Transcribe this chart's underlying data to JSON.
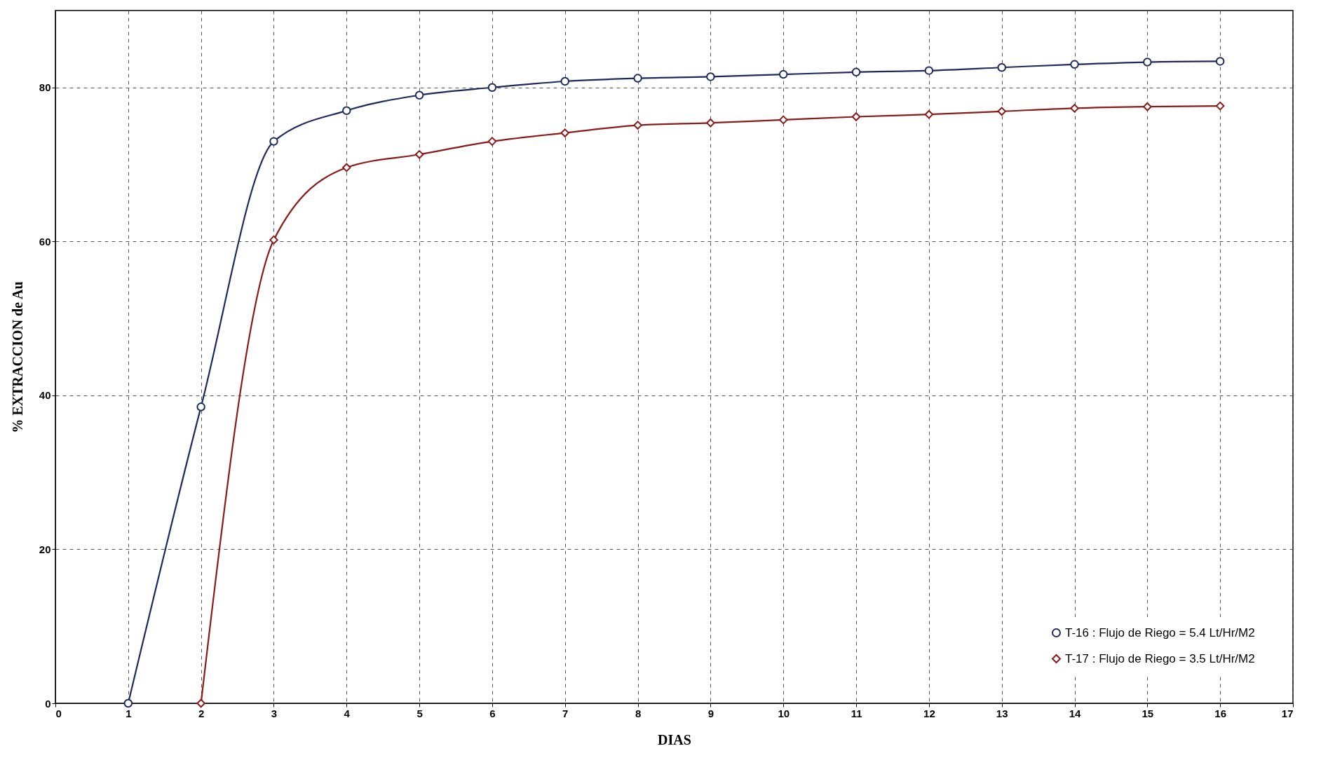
{
  "chart_data": {
    "type": "line",
    "xlabel": "DIAS",
    "ylabel": "% EXTRACCION de Au",
    "xlim": [
      0,
      17
    ],
    "xticks": [
      0,
      1,
      2,
      3,
      4,
      5,
      6,
      7,
      8,
      9,
      10,
      11,
      12,
      13,
      14,
      15,
      16,
      17
    ],
    "ylim": [
      0,
      90
    ],
    "yticks": [
      0,
      20,
      40,
      60,
      80
    ],
    "grid": true,
    "legend": "bottom right",
    "line_style": "solid",
    "series": [
      {
        "name": "T-16 : Flujo de Riego = 5.4 Lt/Hr/M2",
        "color": "#1f2a5c",
        "marker": "circle",
        "x": [
          1,
          2,
          3,
          4,
          5,
          6,
          7,
          8,
          9,
          10,
          11,
          12,
          13,
          14,
          15,
          16
        ],
        "values": [
          0,
          38.5,
          73,
          77,
          79,
          80,
          80.8,
          81.2,
          81.4,
          81.7,
          82,
          82.2,
          82.6,
          83,
          83.3,
          83.4
        ]
      },
      {
        "name": "T-17 : Flujo de Riego = 3.5 Lt/Hr/M2",
        "color": "#8b1a1a",
        "marker": "diamond",
        "x": [
          2,
          3,
          4,
          5,
          6,
          7,
          8,
          9,
          10,
          11,
          12,
          13,
          14,
          15,
          16
        ],
        "values": [
          0,
          60.2,
          69.6,
          71.3,
          73,
          74.1,
          75.1,
          75.4,
          75.8,
          76.2,
          76.5,
          76.9,
          77.3,
          77.5,
          77.6
        ]
      }
    ]
  }
}
